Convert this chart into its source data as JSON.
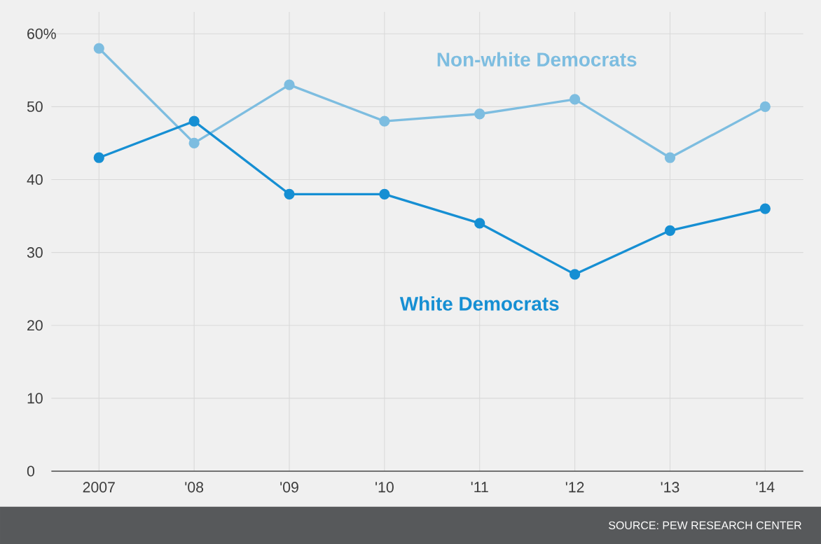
{
  "chart_data": {
    "type": "line",
    "categories": [
      "2007",
      "'08",
      "'09",
      "'10",
      "'11",
      "'12",
      "'13",
      "'14"
    ],
    "series": [
      {
        "name": "Non-white Democrats",
        "color": "#7dbde0",
        "values": [
          58,
          45,
          53,
          48,
          49,
          51,
          43,
          50
        ]
      },
      {
        "name": "White Democrats",
        "color": "#168fd3",
        "values": [
          43,
          48,
          38,
          38,
          34,
          27,
          33,
          36
        ]
      }
    ],
    "ylim": [
      0,
      63
    ],
    "yticks": [
      0,
      10,
      20,
      30,
      40,
      50,
      {
        "value": 60,
        "label": "60%"
      }
    ],
    "grid": true,
    "legend": false,
    "marker": "circle",
    "line_style": "solid",
    "annotations": [
      "SOURCE: PEW RESEARCH CENTER"
    ]
  }
}
